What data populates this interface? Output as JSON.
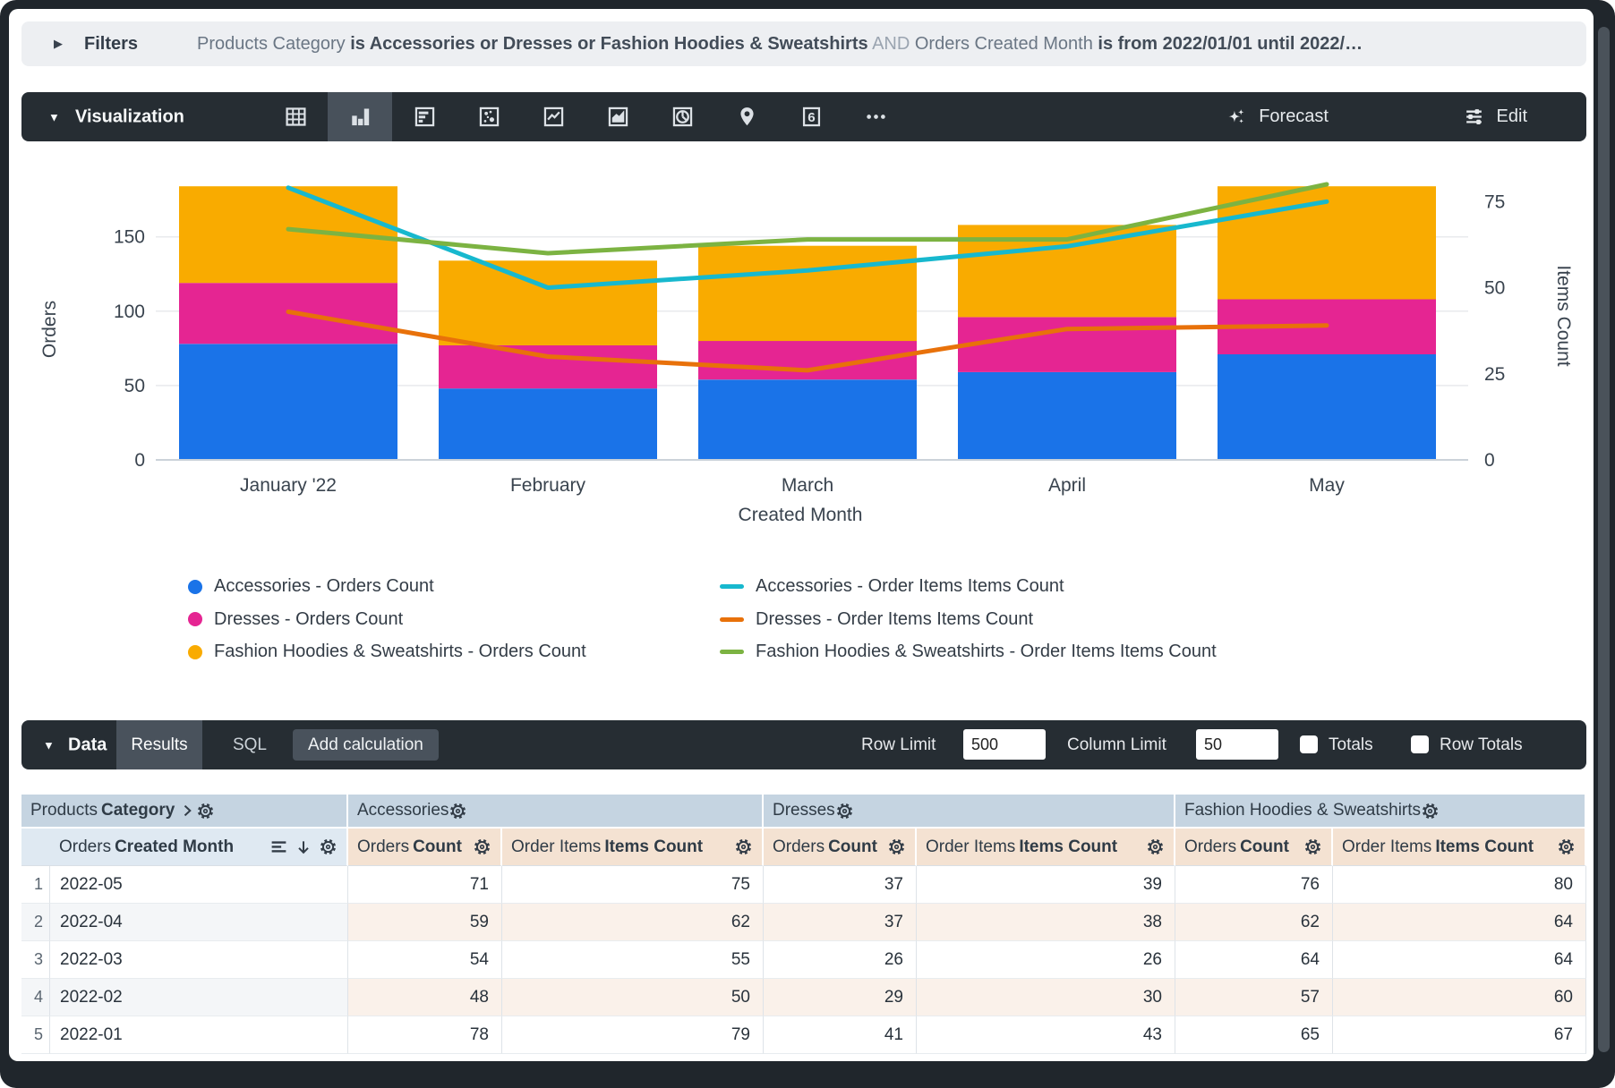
{
  "filters_bar": {
    "label": "Filters",
    "segments": [
      {
        "t": "Products Category ",
        "s": "dim"
      },
      {
        "t": "is Accessories or Dresses or Fashion Hoodies & Sweatshirts",
        "s": "strong"
      },
      {
        "t": " AND ",
        "s": "faint"
      },
      {
        "t": "Orders Created Month ",
        "s": "dim"
      },
      {
        "t": "is from 2022/01/01 until 2022/…",
        "s": "strong"
      }
    ]
  },
  "viz_toolbar": {
    "label": "Visualization",
    "icons": [
      {
        "name": "table",
        "selected": false
      },
      {
        "name": "column-chart",
        "selected": true
      },
      {
        "name": "bar-chart",
        "selected": false
      },
      {
        "name": "scatter-plot",
        "selected": false
      },
      {
        "name": "line-chart",
        "selected": false
      },
      {
        "name": "area-chart",
        "selected": false
      },
      {
        "name": "pie-chart",
        "selected": false
      },
      {
        "name": "map-pin",
        "selected": false
      },
      {
        "name": "single-value",
        "selected": false,
        "glyph": "6"
      },
      {
        "name": "more",
        "selected": false
      }
    ],
    "forecast_label": "Forecast",
    "edit_label": "Edit"
  },
  "chart_data": {
    "type": "combo-stacked-bar-and-line",
    "categories": [
      "January '22",
      "February",
      "March",
      "April",
      "May"
    ],
    "xlabel": "Created Month",
    "left_axis": {
      "label": "Orders",
      "ticks": [
        0,
        50,
        100,
        150
      ]
    },
    "right_axis": {
      "label": "Items Count",
      "ticks": [
        0,
        25,
        50,
        75
      ]
    },
    "bar_series": [
      {
        "name": "Accessories - Orders Count",
        "color": "#1A73E8",
        "values": [
          78,
          48,
          54,
          59,
          71
        ]
      },
      {
        "name": "Dresses - Orders Count",
        "color": "#E52592",
        "values": [
          41,
          29,
          26,
          37,
          37
        ]
      },
      {
        "name": "Fashion Hoodies & Sweatshirts - Orders Count",
        "color": "#F9AB00",
        "values": [
          65,
          57,
          64,
          62,
          76
        ]
      }
    ],
    "line_series": [
      {
        "name": "Accessories - Order Items Items Count",
        "color": "#17B8CE",
        "values": [
          79,
          50,
          55,
          62,
          75
        ]
      },
      {
        "name": "Dresses - Order Items Items Count",
        "color": "#E8710A",
        "values": [
          43,
          30,
          26,
          38,
          39
        ]
      },
      {
        "name": "Fashion Hoodies & Sweatshirts - Order Items Items Count",
        "color": "#7CB342",
        "values": [
          67,
          60,
          64,
          64,
          80
        ]
      }
    ]
  },
  "data_panel": {
    "label": "Data",
    "tabs": [
      {
        "label": "Results",
        "active": true
      },
      {
        "label": "SQL",
        "active": false
      }
    ],
    "add_calculation_label": "Add calculation",
    "row_limit_label": "Row Limit",
    "row_limit_value": "500",
    "column_limit_label": "Column Limit",
    "column_limit_value": "50",
    "totals_label": "Totals",
    "totals_checked": false,
    "row_totals_label": "Row Totals",
    "row_totals_checked": false
  },
  "table": {
    "groups": [
      {
        "parts": [
          {
            "t": "Products ",
            "b": 0
          },
          {
            "t": "Category",
            "b": 1
          }
        ],
        "chevron": true
      },
      {
        "parts": [
          {
            "t": "Accessories",
            "b": 0
          }
        ]
      },
      {
        "parts": [
          {
            "t": "Dresses",
            "b": 0
          }
        ]
      },
      {
        "parts": [
          {
            "t": "Fashion Hoodies & Sweatshirts",
            "b": 0
          }
        ]
      }
    ],
    "dimension_header": {
      "parts": [
        {
          "t": "Orders ",
          "b": 0
        },
        {
          "t": "Created Month",
          "b": 1
        }
      ]
    },
    "measure_headers": [
      {
        "parts": [
          {
            "t": "Orders ",
            "b": 0
          },
          {
            "t": "Count",
            "b": 1
          }
        ]
      },
      {
        "parts": [
          {
            "t": "Order Items ",
            "b": 0
          },
          {
            "t": "Items Count",
            "b": 1
          }
        ]
      },
      {
        "parts": [
          {
            "t": "Orders ",
            "b": 0
          },
          {
            "t": "Count",
            "b": 1
          }
        ]
      },
      {
        "parts": [
          {
            "t": "Order Items ",
            "b": 0
          },
          {
            "t": "Items Count",
            "b": 1
          }
        ]
      },
      {
        "parts": [
          {
            "t": "Orders ",
            "b": 0
          },
          {
            "t": "Count",
            "b": 1
          }
        ]
      },
      {
        "parts": [
          {
            "t": "Order Items ",
            "b": 0
          },
          {
            "t": "Items Count",
            "b": 1
          }
        ]
      }
    ],
    "rows": [
      {
        "n": "1",
        "month": "2022-05",
        "values": [
          71,
          75,
          37,
          39,
          76,
          80
        ]
      },
      {
        "n": "2",
        "month": "2022-04",
        "values": [
          59,
          62,
          37,
          38,
          62,
          64
        ]
      },
      {
        "n": "3",
        "month": "2022-03",
        "values": [
          54,
          55,
          26,
          26,
          64,
          64
        ]
      },
      {
        "n": "4",
        "month": "2022-02",
        "values": [
          48,
          50,
          29,
          30,
          57,
          60
        ]
      },
      {
        "n": "5",
        "month": "2022-01",
        "values": [
          78,
          79,
          41,
          43,
          65,
          67
        ]
      }
    ]
  },
  "colors": {
    "toolbar_dark": "#262D33",
    "accent_blue": "#1A73E8",
    "accent_pink": "#E52592",
    "accent_orange": "#F9AB00",
    "line_cyan": "#17B8CE",
    "line_orange": "#E8710A",
    "line_green": "#7CB342",
    "header_group_bg": "#C5D4E1",
    "header_dim_bg": "#DFE9F2",
    "header_measure_bg": "#F4E2D2"
  }
}
